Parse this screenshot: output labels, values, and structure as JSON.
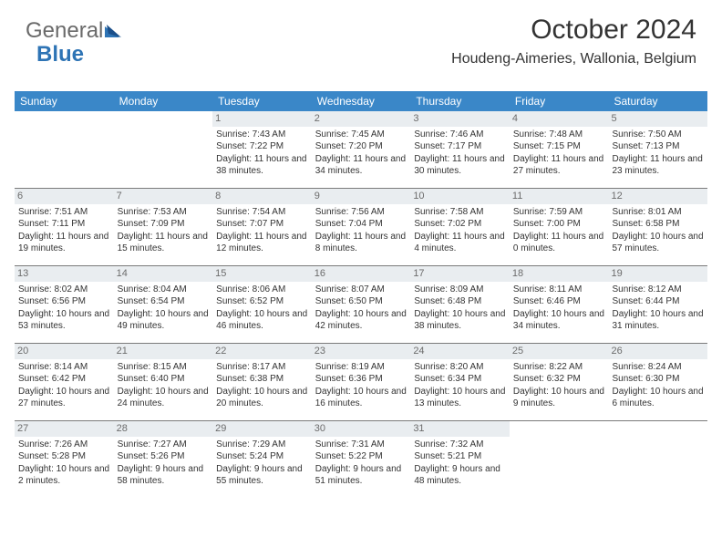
{
  "brand": {
    "part1": "General",
    "part2": "Blue"
  },
  "title": "October 2024",
  "location": "Houdeng-Aimeries, Wallonia, Belgium",
  "colors": {
    "header_bg": "#3a87c8",
    "header_text": "#ffffff",
    "daynum_bg": "#e9edf0",
    "daynum_text": "#6c6c6c",
    "body_text": "#333333",
    "row_border": "#7a7a7a",
    "brand_gray": "#6a6a6a",
    "brand_blue": "#2e74b5"
  },
  "typography": {
    "title_fontsize": 30,
    "location_fontsize": 16,
    "dayheader_fontsize": 12,
    "cell_fontsize": 10,
    "daynum_fontsize": 11,
    "font_family": "Arial"
  },
  "dayHeaders": [
    "Sunday",
    "Monday",
    "Tuesday",
    "Wednesday",
    "Thursday",
    "Friday",
    "Saturday"
  ],
  "weeks": [
    [
      {
        "empty": true
      },
      {
        "empty": true
      },
      {
        "day": "1",
        "sunrise": "Sunrise: 7:43 AM",
        "sunset": "Sunset: 7:22 PM",
        "daylight": "Daylight: 11 hours and 38 minutes."
      },
      {
        "day": "2",
        "sunrise": "Sunrise: 7:45 AM",
        "sunset": "Sunset: 7:20 PM",
        "daylight": "Daylight: 11 hours and 34 minutes."
      },
      {
        "day": "3",
        "sunrise": "Sunrise: 7:46 AM",
        "sunset": "Sunset: 7:17 PM",
        "daylight": "Daylight: 11 hours and 30 minutes."
      },
      {
        "day": "4",
        "sunrise": "Sunrise: 7:48 AM",
        "sunset": "Sunset: 7:15 PM",
        "daylight": "Daylight: 11 hours and 27 minutes."
      },
      {
        "day": "5",
        "sunrise": "Sunrise: 7:50 AM",
        "sunset": "Sunset: 7:13 PM",
        "daylight": "Daylight: 11 hours and 23 minutes."
      }
    ],
    [
      {
        "day": "6",
        "sunrise": "Sunrise: 7:51 AM",
        "sunset": "Sunset: 7:11 PM",
        "daylight": "Daylight: 11 hours and 19 minutes."
      },
      {
        "day": "7",
        "sunrise": "Sunrise: 7:53 AM",
        "sunset": "Sunset: 7:09 PM",
        "daylight": "Daylight: 11 hours and 15 minutes."
      },
      {
        "day": "8",
        "sunrise": "Sunrise: 7:54 AM",
        "sunset": "Sunset: 7:07 PM",
        "daylight": "Daylight: 11 hours and 12 minutes."
      },
      {
        "day": "9",
        "sunrise": "Sunrise: 7:56 AM",
        "sunset": "Sunset: 7:04 PM",
        "daylight": "Daylight: 11 hours and 8 minutes."
      },
      {
        "day": "10",
        "sunrise": "Sunrise: 7:58 AM",
        "sunset": "Sunset: 7:02 PM",
        "daylight": "Daylight: 11 hours and 4 minutes."
      },
      {
        "day": "11",
        "sunrise": "Sunrise: 7:59 AM",
        "sunset": "Sunset: 7:00 PM",
        "daylight": "Daylight: 11 hours and 0 minutes."
      },
      {
        "day": "12",
        "sunrise": "Sunrise: 8:01 AM",
        "sunset": "Sunset: 6:58 PM",
        "daylight": "Daylight: 10 hours and 57 minutes."
      }
    ],
    [
      {
        "day": "13",
        "sunrise": "Sunrise: 8:02 AM",
        "sunset": "Sunset: 6:56 PM",
        "daylight": "Daylight: 10 hours and 53 minutes."
      },
      {
        "day": "14",
        "sunrise": "Sunrise: 8:04 AM",
        "sunset": "Sunset: 6:54 PM",
        "daylight": "Daylight: 10 hours and 49 minutes."
      },
      {
        "day": "15",
        "sunrise": "Sunrise: 8:06 AM",
        "sunset": "Sunset: 6:52 PM",
        "daylight": "Daylight: 10 hours and 46 minutes."
      },
      {
        "day": "16",
        "sunrise": "Sunrise: 8:07 AM",
        "sunset": "Sunset: 6:50 PM",
        "daylight": "Daylight: 10 hours and 42 minutes."
      },
      {
        "day": "17",
        "sunrise": "Sunrise: 8:09 AM",
        "sunset": "Sunset: 6:48 PM",
        "daylight": "Daylight: 10 hours and 38 minutes."
      },
      {
        "day": "18",
        "sunrise": "Sunrise: 8:11 AM",
        "sunset": "Sunset: 6:46 PM",
        "daylight": "Daylight: 10 hours and 34 minutes."
      },
      {
        "day": "19",
        "sunrise": "Sunrise: 8:12 AM",
        "sunset": "Sunset: 6:44 PM",
        "daylight": "Daylight: 10 hours and 31 minutes."
      }
    ],
    [
      {
        "day": "20",
        "sunrise": "Sunrise: 8:14 AM",
        "sunset": "Sunset: 6:42 PM",
        "daylight": "Daylight: 10 hours and 27 minutes."
      },
      {
        "day": "21",
        "sunrise": "Sunrise: 8:15 AM",
        "sunset": "Sunset: 6:40 PM",
        "daylight": "Daylight: 10 hours and 24 minutes."
      },
      {
        "day": "22",
        "sunrise": "Sunrise: 8:17 AM",
        "sunset": "Sunset: 6:38 PM",
        "daylight": "Daylight: 10 hours and 20 minutes."
      },
      {
        "day": "23",
        "sunrise": "Sunrise: 8:19 AM",
        "sunset": "Sunset: 6:36 PM",
        "daylight": "Daylight: 10 hours and 16 minutes."
      },
      {
        "day": "24",
        "sunrise": "Sunrise: 8:20 AM",
        "sunset": "Sunset: 6:34 PM",
        "daylight": "Daylight: 10 hours and 13 minutes."
      },
      {
        "day": "25",
        "sunrise": "Sunrise: 8:22 AM",
        "sunset": "Sunset: 6:32 PM",
        "daylight": "Daylight: 10 hours and 9 minutes."
      },
      {
        "day": "26",
        "sunrise": "Sunrise: 8:24 AM",
        "sunset": "Sunset: 6:30 PM",
        "daylight": "Daylight: 10 hours and 6 minutes."
      }
    ],
    [
      {
        "day": "27",
        "sunrise": "Sunrise: 7:26 AM",
        "sunset": "Sunset: 5:28 PM",
        "daylight": "Daylight: 10 hours and 2 minutes."
      },
      {
        "day": "28",
        "sunrise": "Sunrise: 7:27 AM",
        "sunset": "Sunset: 5:26 PM",
        "daylight": "Daylight: 9 hours and 58 minutes."
      },
      {
        "day": "29",
        "sunrise": "Sunrise: 7:29 AM",
        "sunset": "Sunset: 5:24 PM",
        "daylight": "Daylight: 9 hours and 55 minutes."
      },
      {
        "day": "30",
        "sunrise": "Sunrise: 7:31 AM",
        "sunset": "Sunset: 5:22 PM",
        "daylight": "Daylight: 9 hours and 51 minutes."
      },
      {
        "day": "31",
        "sunrise": "Sunrise: 7:32 AM",
        "sunset": "Sunset: 5:21 PM",
        "daylight": "Daylight: 9 hours and 48 minutes."
      },
      {
        "empty": true
      },
      {
        "empty": true
      }
    ]
  ]
}
